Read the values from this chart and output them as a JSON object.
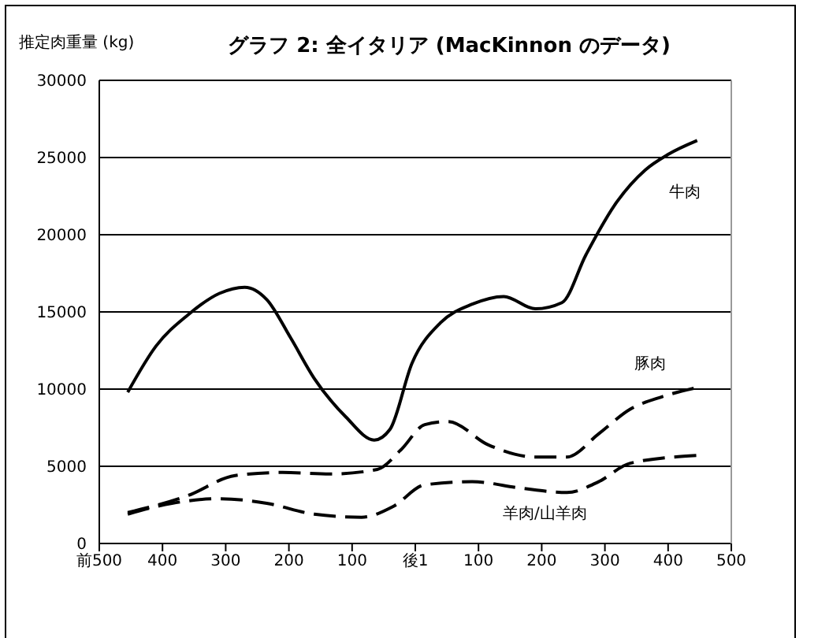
{
  "chart_data": {
    "type": "line",
    "title": "グラフ 2: 全イタリア (MacKinnon のデータ)",
    "ylabel": "推定肉重量 (kg)",
    "xlim": [
      -500,
      500
    ],
    "xticks": [
      {
        "value": -500,
        "label": "前500"
      },
      {
        "value": -400,
        "label": "400"
      },
      {
        "value": -300,
        "label": "300"
      },
      {
        "value": -200,
        "label": "200"
      },
      {
        "value": -100,
        "label": "100"
      },
      {
        "value": 0,
        "label": "後1"
      },
      {
        "value": 100,
        "label": "100"
      },
      {
        "value": 200,
        "label": "200"
      },
      {
        "value": 300,
        "label": "300"
      },
      {
        "value": 400,
        "label": "400"
      },
      {
        "value": 500,
        "label": "500"
      }
    ],
    "ylim": [
      0,
      30000
    ],
    "yticks": [
      0,
      5000,
      10000,
      15000,
      20000,
      25000,
      30000
    ],
    "grid": "y",
    "marker": "none",
    "series": [
      {
        "name": "牛肉",
        "color": "#000000",
        "line_style": "solid",
        "x": [
          -455,
          -410,
          -360,
          -310,
          -270,
          -235,
          -197,
          -160,
          -110,
          -65,
          -40,
          -5,
          40,
          90,
          140,
          190,
          232,
          270,
          315,
          364,
          400,
          446
        ],
        "values": [
          9800,
          12800,
          14800,
          16200,
          16600,
          15800,
          13300,
          10700,
          8200,
          6700,
          7400,
          11700,
          14300,
          15500,
          16000,
          15200,
          15600,
          18700,
          21900,
          24200,
          25200,
          26100
        ]
      },
      {
        "name": "豚肉",
        "color": "#000000",
        "line_style": "dashed",
        "x": [
          -455,
          -360,
          -285,
          -210,
          -135,
          -60,
          -22,
          15,
          52,
          115,
          190,
          240,
          290,
          340,
          390,
          446
        ],
        "values": [
          2000,
          3100,
          4400,
          4600,
          4500,
          4800,
          6100,
          7700,
          7900,
          6400,
          5600,
          5600,
          7100,
          8700,
          9500,
          10100
        ]
      },
      {
        "name": "羊肉/山羊肉",
        "color": "#000000",
        "line_style": "dashed",
        "x": [
          -455,
          -385,
          -310,
          -235,
          -160,
          -85,
          -35,
          15,
          90,
          165,
          240,
          290,
          340,
          446
        ],
        "values": [
          1900,
          2600,
          2900,
          2600,
          1900,
          1700,
          2400,
          3800,
          4000,
          3600,
          3300,
          4000,
          5200,
          5700
        ]
      }
    ]
  }
}
